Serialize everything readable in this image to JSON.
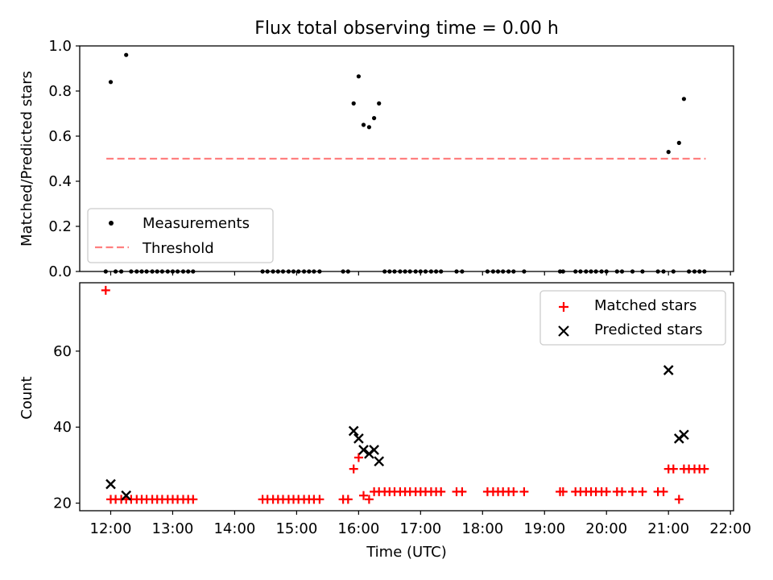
{
  "chart_data": [
    {
      "type": "scatter",
      "title": "Flux total observing time = 0.00 h",
      "xlabel": "",
      "ylabel": "Matched/Predicted stars",
      "xlim": [
        11.5,
        22.05
      ],
      "ylim": [
        0.0,
        1.0
      ],
      "yticks": [
        0.0,
        0.2,
        0.4,
        0.6,
        0.8,
        1.0
      ],
      "ytick_labels": [
        "0.0",
        "0.2",
        "0.4",
        "0.6",
        "0.8",
        "1.0"
      ],
      "legend": {
        "placement": "lower-left",
        "entries": [
          "Measurements",
          "Threshold"
        ]
      },
      "threshold": {
        "name": "Threshold",
        "value": 0.5,
        "x_start": 11.93,
        "x_end": 21.6,
        "color": "#ff7f7f"
      },
      "series": [
        {
          "name": "Measurements",
          "color": "#000000",
          "points": [
            [
              11.92,
              0.0
            ],
            [
              12.0,
              0.84
            ],
            [
              12.08,
              0.0
            ],
            [
              12.17,
              0.0
            ],
            [
              12.25,
              0.96
            ],
            [
              12.33,
              0.0
            ],
            [
              12.42,
              0.0
            ],
            [
              12.5,
              0.0
            ],
            [
              12.58,
              0.0
            ],
            [
              12.67,
              0.0
            ],
            [
              12.75,
              0.0
            ],
            [
              12.83,
              0.0
            ],
            [
              12.92,
              0.0
            ],
            [
              13.0,
              0.0
            ],
            [
              13.08,
              0.0
            ],
            [
              13.17,
              0.0
            ],
            [
              13.25,
              0.0
            ],
            [
              13.33,
              0.0
            ],
            [
              14.45,
              0.0
            ],
            [
              14.53,
              0.0
            ],
            [
              14.62,
              0.0
            ],
            [
              14.7,
              0.0
            ],
            [
              14.78,
              0.0
            ],
            [
              14.87,
              0.0
            ],
            [
              14.95,
              0.0
            ],
            [
              15.03,
              0.0
            ],
            [
              15.12,
              0.0
            ],
            [
              15.2,
              0.0
            ],
            [
              15.28,
              0.0
            ],
            [
              15.37,
              0.0
            ],
            [
              15.75,
              0.0
            ],
            [
              15.83,
              0.0
            ],
            [
              15.92,
              0.745
            ],
            [
              16.0,
              0.865
            ],
            [
              16.08,
              0.65
            ],
            [
              16.17,
              0.64
            ],
            [
              16.25,
              0.68
            ],
            [
              16.33,
              0.745
            ],
            [
              16.42,
              0.0
            ],
            [
              16.5,
              0.0
            ],
            [
              16.58,
              0.0
            ],
            [
              16.67,
              0.0
            ],
            [
              16.75,
              0.0
            ],
            [
              16.83,
              0.0
            ],
            [
              16.92,
              0.0
            ],
            [
              17.0,
              0.0
            ],
            [
              17.08,
              0.0
            ],
            [
              17.17,
              0.0
            ],
            [
              17.25,
              0.0
            ],
            [
              17.33,
              0.0
            ],
            [
              17.58,
              0.0
            ],
            [
              17.67,
              0.0
            ],
            [
              18.08,
              0.0
            ],
            [
              18.17,
              0.0
            ],
            [
              18.25,
              0.0
            ],
            [
              18.33,
              0.0
            ],
            [
              18.42,
              0.0
            ],
            [
              18.5,
              0.0
            ],
            [
              18.67,
              0.0
            ],
            [
              19.25,
              0.0
            ],
            [
              19.3,
              0.0
            ],
            [
              19.5,
              0.0
            ],
            [
              19.58,
              0.0
            ],
            [
              19.67,
              0.0
            ],
            [
              19.75,
              0.0
            ],
            [
              19.83,
              0.0
            ],
            [
              19.92,
              0.0
            ],
            [
              20.0,
              0.0
            ],
            [
              20.17,
              0.0
            ],
            [
              20.25,
              0.0
            ],
            [
              20.42,
              0.0
            ],
            [
              20.58,
              0.0
            ],
            [
              20.83,
              0.0
            ],
            [
              20.92,
              0.0
            ],
            [
              21.0,
              0.53
            ],
            [
              21.08,
              0.0
            ],
            [
              21.17,
              0.57
            ],
            [
              21.25,
              0.765
            ],
            [
              21.33,
              0.0
            ],
            [
              21.42,
              0.0
            ],
            [
              21.5,
              0.0
            ],
            [
              21.58,
              0.0
            ]
          ]
        }
      ]
    },
    {
      "type": "scatter",
      "title": "",
      "xlabel": "Time (UTC)",
      "ylabel": "Count",
      "xlim": [
        11.5,
        22.05
      ],
      "ylim": [
        18.0,
        78.0
      ],
      "yticks": [
        20,
        40,
        60
      ],
      "ytick_labels": [
        "20",
        "40",
        "60"
      ],
      "xticks": [
        12,
        13,
        14,
        15,
        16,
        17,
        18,
        19,
        20,
        21,
        22
      ],
      "xtick_labels": [
        "12:00",
        "13:00",
        "14:00",
        "15:00",
        "16:00",
        "17:00",
        "18:00",
        "19:00",
        "20:00",
        "21:00",
        "22:00"
      ],
      "legend": {
        "placement": "top-right",
        "entries": [
          "Matched stars",
          "Predicted stars"
        ]
      },
      "series": [
        {
          "name": "Matched stars",
          "color": "#ff0000",
          "marker": "plus",
          "points": [
            [
              11.92,
              76
            ],
            [
              12.0,
              21
            ],
            [
              12.08,
              21
            ],
            [
              12.17,
              21
            ],
            [
              12.25,
              21
            ],
            [
              12.33,
              21
            ],
            [
              12.42,
              21
            ],
            [
              12.5,
              21
            ],
            [
              12.58,
              21
            ],
            [
              12.67,
              21
            ],
            [
              12.75,
              21
            ],
            [
              12.83,
              21
            ],
            [
              12.92,
              21
            ],
            [
              13.0,
              21
            ],
            [
              13.08,
              21
            ],
            [
              13.17,
              21
            ],
            [
              13.25,
              21
            ],
            [
              13.33,
              21
            ],
            [
              14.45,
              21
            ],
            [
              14.53,
              21
            ],
            [
              14.62,
              21
            ],
            [
              14.7,
              21
            ],
            [
              14.78,
              21
            ],
            [
              14.87,
              21
            ],
            [
              14.95,
              21
            ],
            [
              15.03,
              21
            ],
            [
              15.12,
              21
            ],
            [
              15.2,
              21
            ],
            [
              15.28,
              21
            ],
            [
              15.37,
              21
            ],
            [
              15.75,
              21
            ],
            [
              15.83,
              21
            ],
            [
              15.92,
              29
            ],
            [
              16.0,
              32
            ],
            [
              16.08,
              22
            ],
            [
              16.17,
              21
            ],
            [
              16.25,
              23
            ],
            [
              16.33,
              23
            ],
            [
              16.42,
              23
            ],
            [
              16.5,
              23
            ],
            [
              16.58,
              23
            ],
            [
              16.67,
              23
            ],
            [
              16.75,
              23
            ],
            [
              16.83,
              23
            ],
            [
              16.92,
              23
            ],
            [
              17.0,
              23
            ],
            [
              17.08,
              23
            ],
            [
              17.17,
              23
            ],
            [
              17.25,
              23
            ],
            [
              17.33,
              23
            ],
            [
              17.58,
              23
            ],
            [
              17.67,
              23
            ],
            [
              18.08,
              23
            ],
            [
              18.17,
              23
            ],
            [
              18.25,
              23
            ],
            [
              18.33,
              23
            ],
            [
              18.42,
              23
            ],
            [
              18.5,
              23
            ],
            [
              18.67,
              23
            ],
            [
              19.25,
              23
            ],
            [
              19.3,
              23
            ],
            [
              19.5,
              23
            ],
            [
              19.58,
              23
            ],
            [
              19.67,
              23
            ],
            [
              19.75,
              23
            ],
            [
              19.83,
              23
            ],
            [
              19.92,
              23
            ],
            [
              20.0,
              23
            ],
            [
              20.17,
              23
            ],
            [
              20.25,
              23
            ],
            [
              20.42,
              23
            ],
            [
              20.58,
              23
            ],
            [
              20.83,
              23
            ],
            [
              20.92,
              23
            ],
            [
              21.0,
              29
            ],
            [
              21.08,
              29
            ],
            [
              21.17,
              21
            ],
            [
              21.25,
              29
            ],
            [
              21.33,
              29
            ],
            [
              21.42,
              29
            ],
            [
              21.5,
              29
            ],
            [
              21.58,
              29
            ]
          ]
        },
        {
          "name": "Predicted stars",
          "color": "#000000",
          "marker": "x",
          "points": [
            [
              12.0,
              25
            ],
            [
              12.25,
              22
            ],
            [
              15.92,
              39
            ],
            [
              16.0,
              37
            ],
            [
              16.08,
              34
            ],
            [
              16.17,
              33
            ],
            [
              16.25,
              34
            ],
            [
              16.33,
              31
            ],
            [
              21.0,
              55
            ],
            [
              21.17,
              37
            ],
            [
              21.25,
              38
            ]
          ]
        }
      ]
    }
  ]
}
